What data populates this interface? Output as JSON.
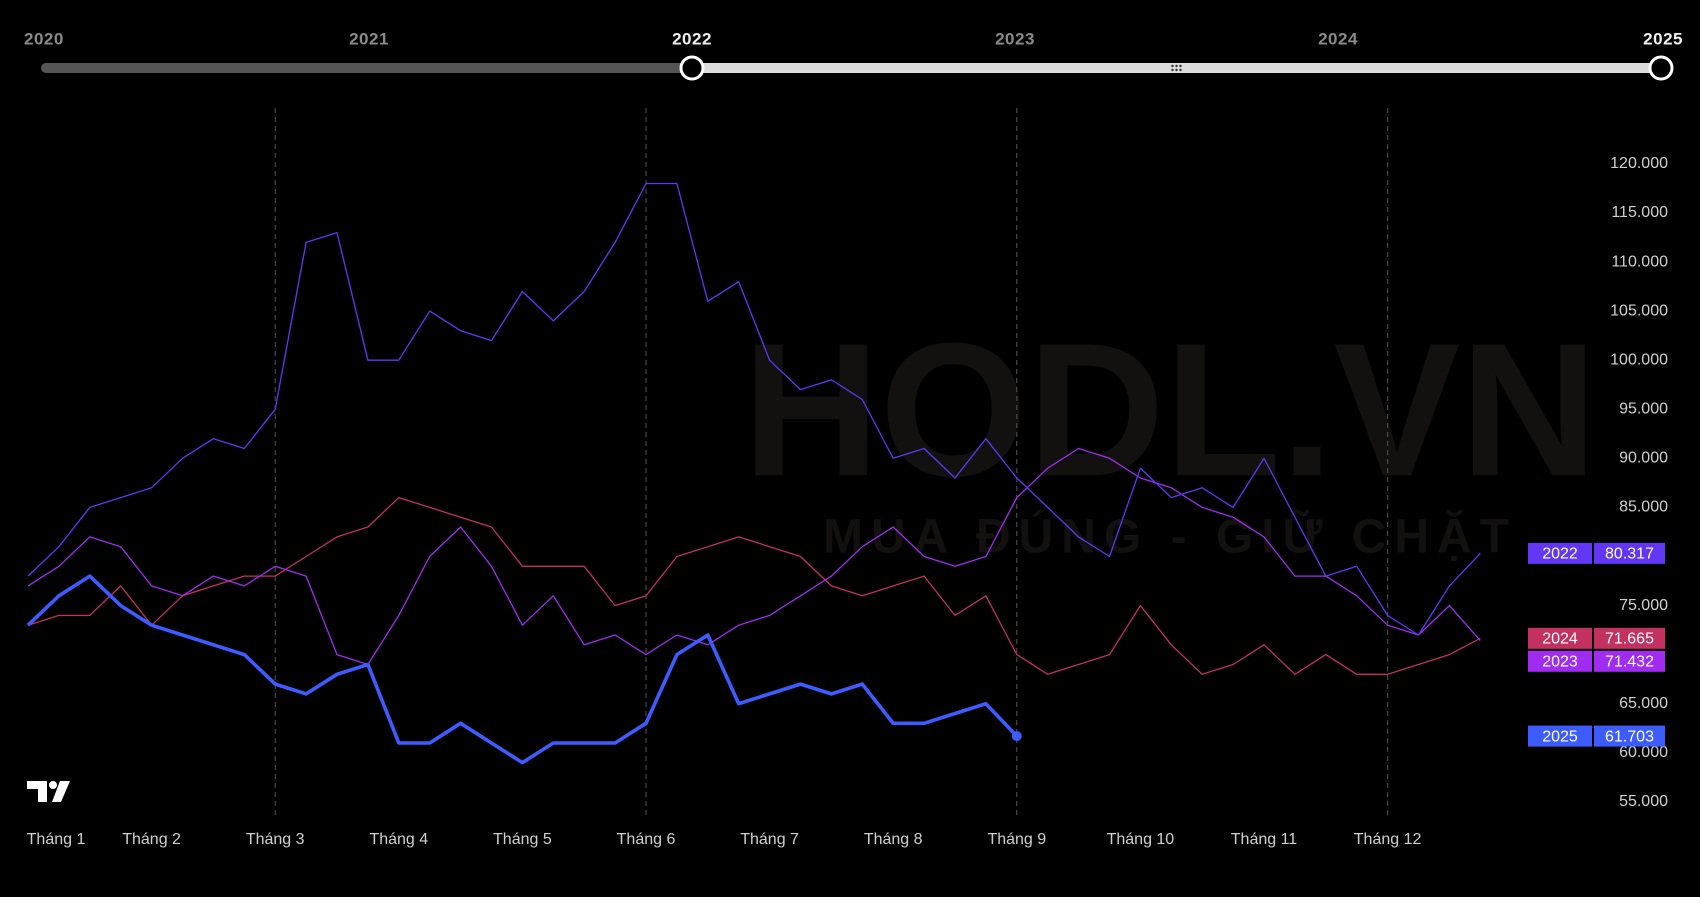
{
  "range_slider": {
    "labels": [
      "2020",
      "2021",
      "2022",
      "2023",
      "2024",
      "2025"
    ],
    "selected": [
      "2022",
      "2025"
    ]
  },
  "watermark": {
    "title": "HODL.VN",
    "subtitle": "MUA ĐÚNG - GIỮ CHẶT"
  },
  "chart_data": {
    "type": "line",
    "categories": [
      "Tháng 1",
      null,
      null,
      null,
      "Tháng 2",
      null,
      null,
      null,
      "Tháng 3",
      null,
      null,
      null,
      "Tháng 4",
      null,
      null,
      null,
      "Tháng 5",
      null,
      null,
      null,
      "Tháng 6",
      null,
      null,
      null,
      "Tháng 7",
      null,
      null,
      null,
      "Tháng 8",
      null,
      null,
      null,
      "Tháng 9",
      null,
      null,
      null,
      "Tháng 10",
      null,
      null,
      null,
      "Tháng 11",
      null,
      null,
      null,
      "Tháng 12",
      null,
      null,
      null
    ],
    "ylim": [
      53000,
      126000
    ],
    "yticks": [
      {
        "value": 55000,
        "label": "55.000"
      },
      {
        "value": 60000,
        "label": "60.000"
      },
      {
        "value": 65000,
        "label": "65.000"
      },
      {
        "value": 75000,
        "label": "75.000"
      },
      {
        "value": 85000,
        "label": "85.000"
      },
      {
        "value": 90000,
        "label": "90.000"
      },
      {
        "value": 95000,
        "label": "95.000"
      },
      {
        "value": 100000,
        "label": "100.000"
      },
      {
        "value": 105000,
        "label": "105.000"
      },
      {
        "value": 110000,
        "label": "110.000"
      },
      {
        "value": 115000,
        "label": "115.000"
      },
      {
        "value": 120000,
        "label": "120.000"
      }
    ],
    "series": [
      {
        "name": "2024",
        "color": "#c2315f",
        "width": 1.3,
        "values": [
          73000,
          74000,
          74000,
          77000,
          73000,
          76000,
          77000,
          78000,
          78000,
          80000,
          82000,
          83000,
          86000,
          85000,
          84000,
          83000,
          79000,
          79000,
          79000,
          75000,
          76000,
          80000,
          81000,
          82000,
          81000,
          80000,
          77000,
          76000,
          77000,
          78000,
          74000,
          76000,
          70000,
          68000,
          69000,
          70000,
          75000,
          71000,
          68000,
          69000,
          71000,
          68000,
          70000,
          68000,
          68000,
          69000,
          70000,
          71665
        ],
        "value_labels": [
          null,
          null,
          null,
          null,
          null,
          null,
          null,
          null,
          null,
          null,
          null,
          null,
          null,
          null,
          null,
          null,
          null,
          null,
          null,
          null,
          null,
          null,
          null,
          null,
          null,
          null,
          null,
          null,
          null,
          null,
          null,
          null,
          null,
          null,
          null,
          null,
          null,
          null,
          null,
          null,
          null,
          null,
          null,
          null,
          null,
          null,
          null,
          "71.665"
        ]
      },
      {
        "name": "2023",
        "color": "#a02cf0",
        "width": 1.3,
        "values": [
          77000,
          79000,
          82000,
          81000,
          77000,
          76000,
          78000,
          77000,
          79000,
          78000,
          70000,
          69000,
          74000,
          80000,
          83000,
          79000,
          73000,
          76000,
          71000,
          72000,
          70000,
          72000,
          71000,
          73000,
          74000,
          76000,
          78000,
          81000,
          83000,
          80000,
          79000,
          80000,
          86000,
          89000,
          91000,
          90000,
          88000,
          87000,
          85000,
          84000,
          82000,
          78000,
          78000,
          76000,
          73000,
          72000,
          75000,
          71432
        ],
        "value_labels": [
          null,
          null,
          null,
          null,
          null,
          null,
          null,
          null,
          null,
          null,
          null,
          null,
          null,
          null,
          null,
          null,
          null,
          null,
          null,
          null,
          null,
          null,
          null,
          null,
          null,
          null,
          null,
          null,
          null,
          null,
          null,
          null,
          null,
          null,
          null,
          null,
          null,
          null,
          null,
          null,
          null,
          null,
          null,
          null,
          null,
          null,
          null,
          "71.432"
        ]
      },
      {
        "name": "2022",
        "color": "#6236f5",
        "width": 1.3,
        "values": [
          78000,
          81000,
          85000,
          86000,
          87000,
          90000,
          92000,
          91000,
          95000,
          112000,
          113000,
          100000,
          100000,
          105000,
          103000,
          102000,
          107000,
          104000,
          107000,
          112000,
          118000,
          118000,
          106000,
          108000,
          100000,
          97000,
          98000,
          96000,
          90000,
          91000,
          88000,
          92000,
          88000,
          85000,
          82000,
          80000,
          89000,
          86000,
          87000,
          85000,
          90000,
          84000,
          78000,
          79000,
          74000,
          72000,
          77000,
          80317
        ],
        "value_labels": [
          null,
          null,
          null,
          null,
          null,
          null,
          null,
          null,
          null,
          null,
          null,
          null,
          null,
          null,
          null,
          null,
          null,
          null,
          null,
          null,
          null,
          null,
          null,
          null,
          null,
          null,
          null,
          null,
          null,
          null,
          null,
          null,
          null,
          null,
          null,
          null,
          null,
          null,
          null,
          null,
          null,
          null,
          null,
          null,
          null,
          null,
          null,
          "80.317"
        ]
      },
      {
        "name": "2025",
        "color": "#3d5cff",
        "width": 3.6,
        "values": [
          73000,
          76000,
          78000,
          75000,
          73000,
          72000,
          71000,
          70000,
          67000,
          66000,
          68000,
          69000,
          61000,
          61000,
          63000,
          61000,
          59000,
          61000,
          61000,
          61000,
          63000,
          70000,
          72000,
          65000,
          66000,
          67000,
          66000,
          67000,
          63000,
          63000,
          64000,
          65000,
          61703,
          null,
          null,
          null,
          null,
          null,
          null,
          null,
          null,
          null,
          null,
          null,
          null,
          null,
          null,
          null
        ],
        "value_labels": [
          null,
          null,
          null,
          null,
          null,
          null,
          null,
          null,
          null,
          null,
          null,
          null,
          null,
          null,
          null,
          null,
          null,
          null,
          null,
          null,
          null,
          null,
          null,
          null,
          null,
          null,
          null,
          null,
          null,
          null,
          null,
          null,
          "61.703",
          null,
          null,
          null,
          null,
          null,
          null,
          null,
          null,
          null,
          null,
          null,
          null,
          null,
          null,
          null
        ]
      }
    ]
  }
}
